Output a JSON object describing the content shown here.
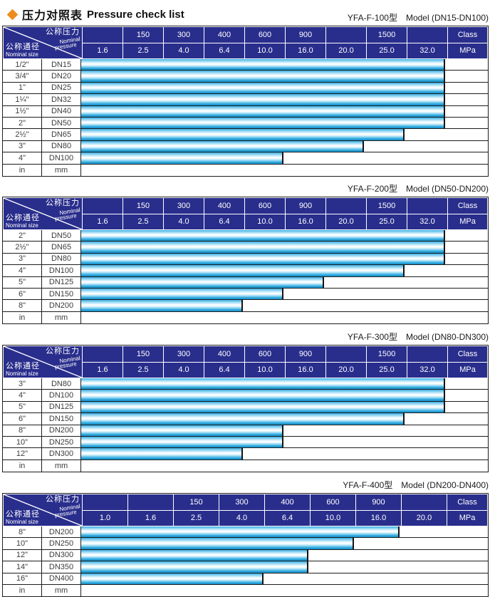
{
  "page": {
    "title_zh": "压力对照表",
    "title_en": "Pressure check list",
    "accent_color": "#ee8c1b",
    "header_bg": "#292e8c",
    "bar_color": "#2aa2d9"
  },
  "header_cell": {
    "pressure_zh": "公称压力",
    "pressure_en_1": "Nominal",
    "pressure_en_2": "pressure",
    "size_zh": "公称通径",
    "size_en": "Nominal size",
    "class_unit": "Class",
    "mpa_unit": "MPa"
  },
  "tables": [
    {
      "caption_model": "YFA-F-100型",
      "caption_range": "Model (DN15-DN100)",
      "class_cells": [
        "",
        "150",
        "300",
        "400",
        "600",
        "900",
        "",
        "1500",
        ""
      ],
      "mpa_cells": [
        "1.6",
        "2.5",
        "4.0",
        "6.4",
        "10.0",
        "16.0",
        "20.0",
        "25.0",
        "32.0"
      ],
      "rows": [
        {
          "size": "1/2\"",
          "dn": "DN15",
          "bar_cols": 9,
          "max_mpa": "32.0"
        },
        {
          "size": "3/4\"",
          "dn": "DN20",
          "bar_cols": 9,
          "max_mpa": "32.0"
        },
        {
          "size": "1\"",
          "dn": "DN25",
          "bar_cols": 9,
          "max_mpa": "32.0"
        },
        {
          "size": "1¼\"",
          "dn": "DN32",
          "bar_cols": 9,
          "max_mpa": "32.0"
        },
        {
          "size": "1½\"",
          "dn": "DN40",
          "bar_cols": 9,
          "max_mpa": "32.0"
        },
        {
          "size": "2\"",
          "dn": "DN50",
          "bar_cols": 9,
          "max_mpa": "32.0"
        },
        {
          "size": "2½\"",
          "dn": "DN65",
          "bar_cols": 8,
          "max_mpa": "25.0"
        },
        {
          "size": "3\"",
          "dn": "DN80",
          "bar_cols": 7,
          "max_mpa": "20.0"
        },
        {
          "size": "4\"",
          "dn": "DN100",
          "bar_cols": 5,
          "max_mpa": "10.0"
        },
        {
          "size": "in",
          "dn": "mm",
          "bar_cols": 0,
          "max_mpa": ""
        }
      ]
    },
    {
      "caption_model": "YFA-F-200型",
      "caption_range": "Model (DN50-DN200)",
      "class_cells": [
        "",
        "150",
        "300",
        "400",
        "600",
        "900",
        "",
        "1500",
        ""
      ],
      "mpa_cells": [
        "1.6",
        "2.5",
        "4.0",
        "6.4",
        "10.0",
        "16.0",
        "20.0",
        "25.0",
        "32.0"
      ],
      "rows": [
        {
          "size": "2\"",
          "dn": "DN50",
          "bar_cols": 9,
          "max_mpa": "32.0"
        },
        {
          "size": "2½\"",
          "dn": "DN65",
          "bar_cols": 9,
          "max_mpa": "32.0"
        },
        {
          "size": "3\"",
          "dn": "DN80",
          "bar_cols": 9,
          "max_mpa": "32.0"
        },
        {
          "size": "4\"",
          "dn": "DN100",
          "bar_cols": 8,
          "max_mpa": "25.0"
        },
        {
          "size": "5\"",
          "dn": "DN125",
          "bar_cols": 6,
          "max_mpa": "16.0"
        },
        {
          "size": "6\"",
          "dn": "DN150",
          "bar_cols": 5,
          "max_mpa": "10.0"
        },
        {
          "size": "8\"",
          "dn": "DN200",
          "bar_cols": 4,
          "max_mpa": "6.4"
        },
        {
          "size": "in",
          "dn": "mm",
          "bar_cols": 0,
          "max_mpa": ""
        }
      ]
    },
    {
      "caption_model": "YFA-F-300型",
      "caption_range": "Model (DN80-DN300)",
      "class_cells": [
        "",
        "150",
        "300",
        "400",
        "600",
        "900",
        "",
        "1500",
        ""
      ],
      "mpa_cells": [
        "1.6",
        "2.5",
        "4.0",
        "6.4",
        "10.0",
        "16.0",
        "20.0",
        "25.0",
        "32.0"
      ],
      "rows": [
        {
          "size": "3\"",
          "dn": "DN80",
          "bar_cols": 9,
          "max_mpa": "32.0"
        },
        {
          "size": "4\"",
          "dn": "DN100",
          "bar_cols": 9,
          "max_mpa": "32.0"
        },
        {
          "size": "5\"",
          "dn": "DN125",
          "bar_cols": 9,
          "max_mpa": "32.0"
        },
        {
          "size": "6\"",
          "dn": "DN150",
          "bar_cols": 8,
          "max_mpa": "25.0"
        },
        {
          "size": "8\"",
          "dn": "DN200",
          "bar_cols": 5,
          "max_mpa": "10.0"
        },
        {
          "size": "10\"",
          "dn": "DN250",
          "bar_cols": 5,
          "max_mpa": "10.0"
        },
        {
          "size": "12\"",
          "dn": "DN300",
          "bar_cols": 4,
          "max_mpa": "6.4"
        },
        {
          "size": "in",
          "dn": "mm",
          "bar_cols": 0,
          "max_mpa": ""
        }
      ]
    },
    {
      "caption_model": "YFA-F-400型",
      "caption_range": "Model (DN200-DN400)",
      "class_cells": [
        "",
        "",
        "150",
        "300",
        "400",
        "600",
        "900",
        ""
      ],
      "mpa_cells": [
        "1.0",
        "1.6",
        "2.5",
        "4.0",
        "6.4",
        "10.0",
        "16.0",
        "20.0"
      ],
      "rows": [
        {
          "size": "8\"",
          "dn": "DN200",
          "bar_cols": 7,
          "max_mpa": "16.0"
        },
        {
          "size": "10\"",
          "dn": "DN250",
          "bar_cols": 6,
          "max_mpa": "10.0"
        },
        {
          "size": "12\"",
          "dn": "DN300",
          "bar_cols": 5,
          "max_mpa": "6.4"
        },
        {
          "size": "14\"",
          "dn": "DN350",
          "bar_cols": 5,
          "max_mpa": "6.4"
        },
        {
          "size": "16\"",
          "dn": "DN400",
          "bar_cols": 4,
          "max_mpa": "4.0"
        },
        {
          "size": "in",
          "dn": "mm",
          "bar_cols": 0,
          "max_mpa": ""
        }
      ]
    }
  ]
}
